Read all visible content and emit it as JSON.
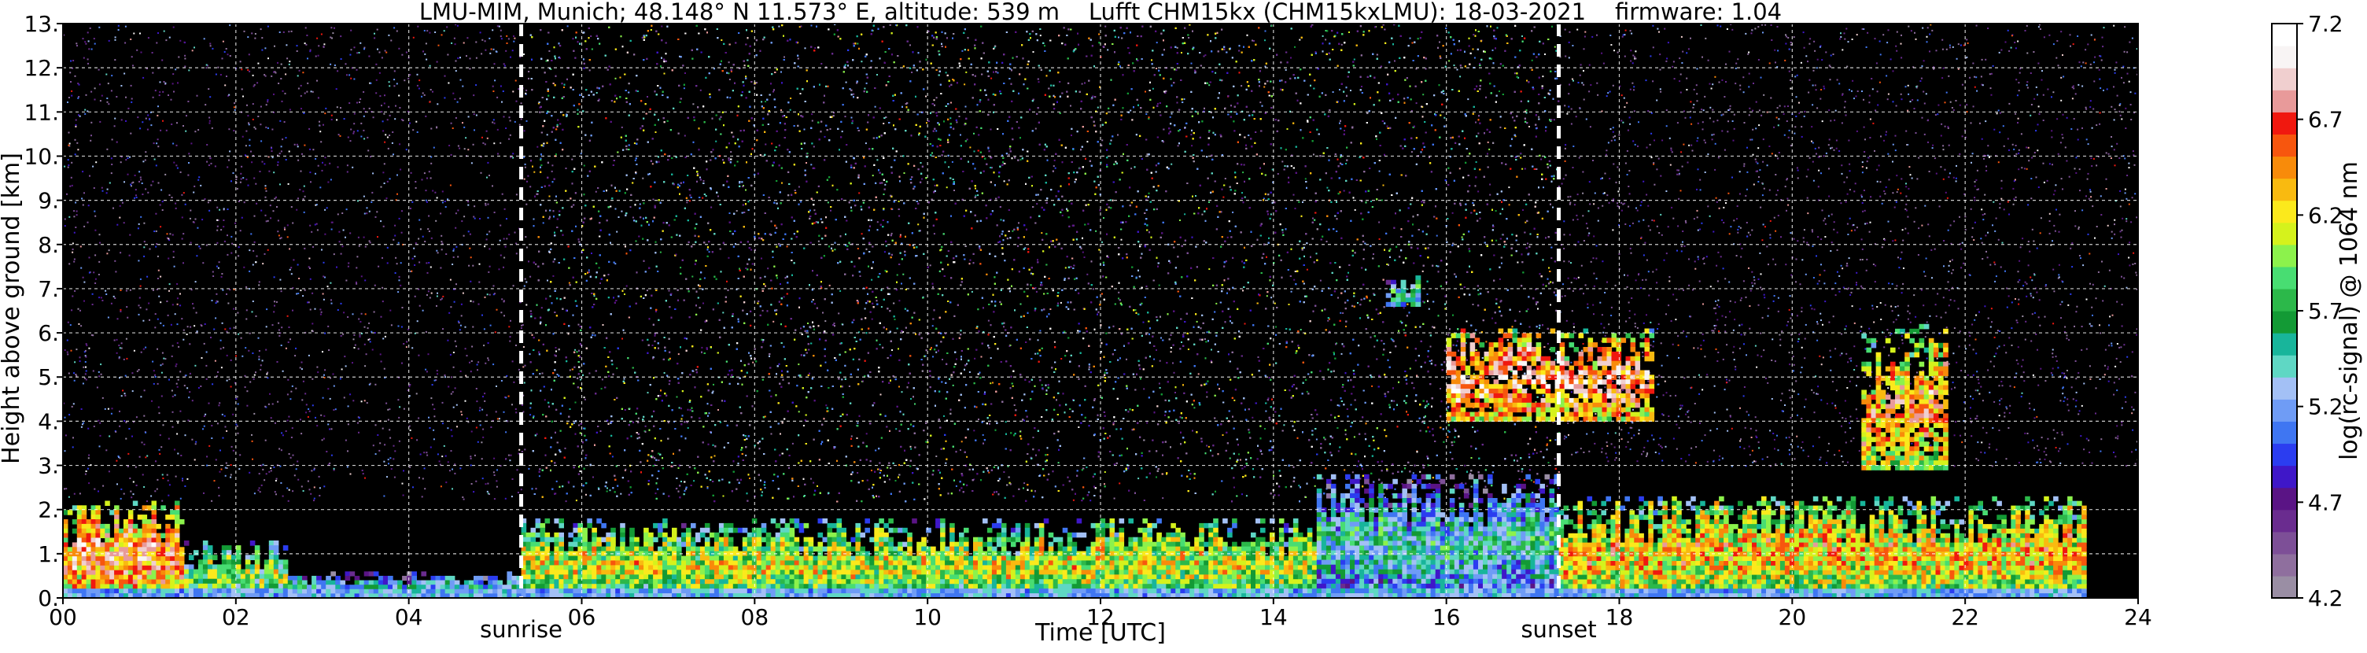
{
  "chart_data": {
    "type": "heatmap",
    "title": "LMU-MIM, Munich; 48.148° N 11.573° E, altitude: 539 m    Lufft CHM15kx (CHM15kxLMU): 18-03-2021    firmware: 1.04",
    "xlabel": "Time [UTC]",
    "ylabel": "Height above ground [km]",
    "colorbar_label": "log(rc-signal) @ 1064 nm",
    "xlim": [
      0,
      24
    ],
    "ylim": [
      0,
      13
    ],
    "x_ticks": [
      "00",
      "02",
      "04",
      "06",
      "08",
      "10",
      "12",
      "14",
      "16",
      "18",
      "20",
      "22",
      "24"
    ],
    "x_tick_values": [
      0,
      2,
      4,
      6,
      8,
      10,
      12,
      14,
      16,
      18,
      20,
      22,
      24
    ],
    "y_ticks": [
      "0.",
      "1.",
      "2.",
      "3.",
      "4.",
      "5.",
      "6.",
      "7.",
      "8.",
      "9.",
      "10.",
      "11.",
      "12.",
      "13."
    ],
    "y_tick_values": [
      0,
      1,
      2,
      3,
      4,
      5,
      6,
      7,
      8,
      9,
      10,
      11,
      12,
      13
    ],
    "colorbar_ticks": [
      "4.2",
      "4.7",
      "5.2",
      "5.7",
      "6.2",
      "6.7",
      "7.2"
    ],
    "colorbar_range": [
      4.2,
      7.2
    ],
    "grid": true,
    "annotations": [
      {
        "label": "sunrise",
        "time": 5.3
      },
      {
        "label": "sunset",
        "time": 17.3
      }
    ],
    "colormap": [
      "#9a8ea4",
      "#8f6f9e",
      "#7d4f97",
      "#6a2c8f",
      "#5a1485",
      "#3f17c8",
      "#2b3df0",
      "#3f76f2",
      "#6f9cf5",
      "#a3c0f5",
      "#5fd7c4",
      "#18b59b",
      "#139a35",
      "#2cb84a",
      "#48dd72",
      "#8cf24c",
      "#d5f21c",
      "#fbe91c",
      "#f9ba10",
      "#f88b0a",
      "#f7560e",
      "#f0180f",
      "#e89a9a",
      "#f0cfcf",
      "#f8f4f4",
      "#ffffff"
    ],
    "background_color": "#000000",
    "features": [
      {
        "kind": "background_noise_dense",
        "t0": 5.4,
        "t1": 17.3,
        "h0": 2.2,
        "h1": 13
      },
      {
        "kind": "background_noise_sparse",
        "t0": 0,
        "t1": 5.4,
        "h0": 2.2,
        "h1": 13
      },
      {
        "kind": "background_noise_sparse",
        "t0": 17.3,
        "t1": 24,
        "h0": 3.0,
        "h1": 13
      },
      {
        "kind": "boundary_layer",
        "t0": 0,
        "t1": 1.4,
        "h0": 0,
        "h1": 2.2,
        "level": 6.5
      },
      {
        "kind": "boundary_layer",
        "t0": 1.4,
        "t1": 2.6,
        "h0": 0,
        "h1": 1.3,
        "level": 5.8
      },
      {
        "kind": "boundary_layer",
        "t0": 2.6,
        "t1": 5.3,
        "h0": 0,
        "h1": 0.6,
        "level": 5.3
      },
      {
        "kind": "boundary_layer",
        "t0": 5.3,
        "t1": 14.5,
        "h0": 0,
        "h1": 1.8,
        "level": 6.0
      },
      {
        "kind": "boundary_layer",
        "t0": 14.5,
        "t1": 17.3,
        "h0": 0,
        "h1": 2.8,
        "level": 5.4
      },
      {
        "kind": "boundary_layer",
        "t0": 17.3,
        "t1": 23.4,
        "h0": 0,
        "h1": 2.3,
        "level": 6.2
      },
      {
        "kind": "cloud",
        "t0": 16.0,
        "t1": 18.4,
        "h0": 4.0,
        "h1": 6.1,
        "level": 6.6
      },
      {
        "kind": "cloud",
        "t0": 20.8,
        "t1": 21.8,
        "h0": 2.9,
        "h1": 6.2,
        "level": 6.4
      },
      {
        "kind": "cloud",
        "t0": 15.3,
        "t1": 15.7,
        "h0": 6.6,
        "h1": 7.3,
        "level": 5.6
      }
    ]
  }
}
